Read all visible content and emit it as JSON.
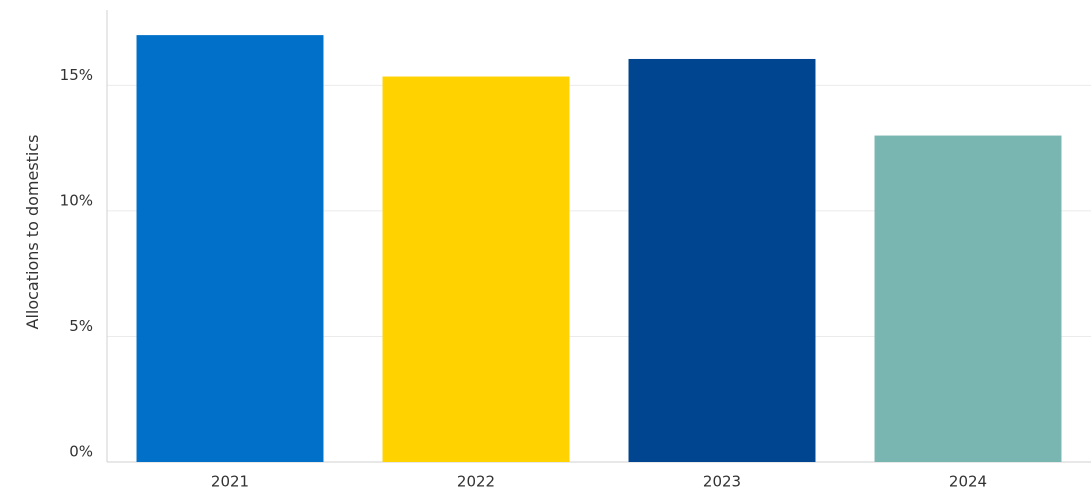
{
  "chart_data": {
    "type": "bar",
    "title": "",
    "xlabel": "",
    "ylabel": "Allocations to domestics",
    "categories": [
      "2021",
      "2022",
      "2023",
      "2024"
    ],
    "values": [
      17.0,
      15.35,
      16.05,
      13.0
    ],
    "colors": [
      "#0070C9",
      "#FFD200",
      "#00458F",
      "#79B6B1"
    ],
    "ylim": [
      0,
      18
    ],
    "yticks": [
      0,
      5,
      10,
      15
    ],
    "ytick_labels": [
      "0%",
      "5%",
      "10%",
      "15%"
    ],
    "grid": true,
    "legend": "none"
  }
}
